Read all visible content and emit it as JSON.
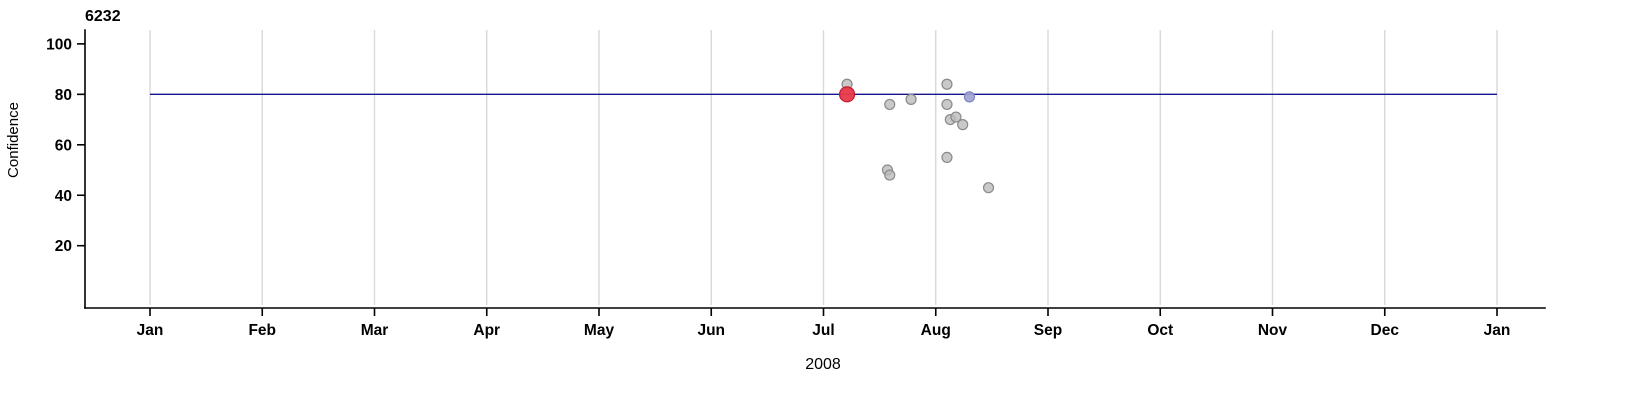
{
  "chart_data": {
    "type": "scatter",
    "title": "6232",
    "xlabel": "2008",
    "ylabel": "Confidence",
    "x_axis": {
      "unit": "months_from_first_jan_tick",
      "tick_labels": [
        "Jan",
        "Feb",
        "Mar",
        "Apr",
        "May",
        "Jun",
        "Jul",
        "Aug",
        "Sep",
        "Oct",
        "Nov",
        "Dec",
        "Jan"
      ],
      "year": "2008"
    },
    "y_axis": {
      "tick_labels": [
        100,
        80,
        60,
        40,
        20
      ],
      "range": [
        -3.5,
        105.5
      ]
    },
    "grid": "vertical-monthly",
    "legend": "none",
    "reference_line": {
      "y": 80,
      "color": "#16168c"
    },
    "series": [
      {
        "name": "observations",
        "color": "#bcbcbc",
        "stroke": "#8a8a8a",
        "opacity": 0.8,
        "radius": 5,
        "point_name": "data-point-gray",
        "points": [
          {
            "x": 6.21,
            "y": 84
          },
          {
            "x": 6.57,
            "y": 50
          },
          {
            "x": 6.59,
            "y": 48
          },
          {
            "x": 6.59,
            "y": 76
          },
          {
            "x": 6.78,
            "y": 78
          },
          {
            "x": 7.1,
            "y": 84
          },
          {
            "x": 7.1,
            "y": 76
          },
          {
            "x": 7.13,
            "y": 70
          },
          {
            "x": 7.18,
            "y": 71
          },
          {
            "x": 7.24,
            "y": 68
          },
          {
            "x": 7.1,
            "y": 55
          },
          {
            "x": 7.47,
            "y": 43
          }
        ]
      },
      {
        "name": "highlighted-observation",
        "color": "#e8394a",
        "stroke": "#c0172e",
        "opacity": 0.95,
        "radius": 7.5,
        "point_name": "data-point-highlighted-red",
        "points": [
          {
            "x": 6.21,
            "y": 80
          }
        ]
      },
      {
        "name": "selected-observation",
        "color": "#9fa4d4",
        "stroke": "#7e84c0",
        "opacity": 0.9,
        "radius": 5,
        "point_name": "data-point-blue",
        "points": [
          {
            "x": 7.3,
            "y": 79
          }
        ]
      }
    ]
  }
}
